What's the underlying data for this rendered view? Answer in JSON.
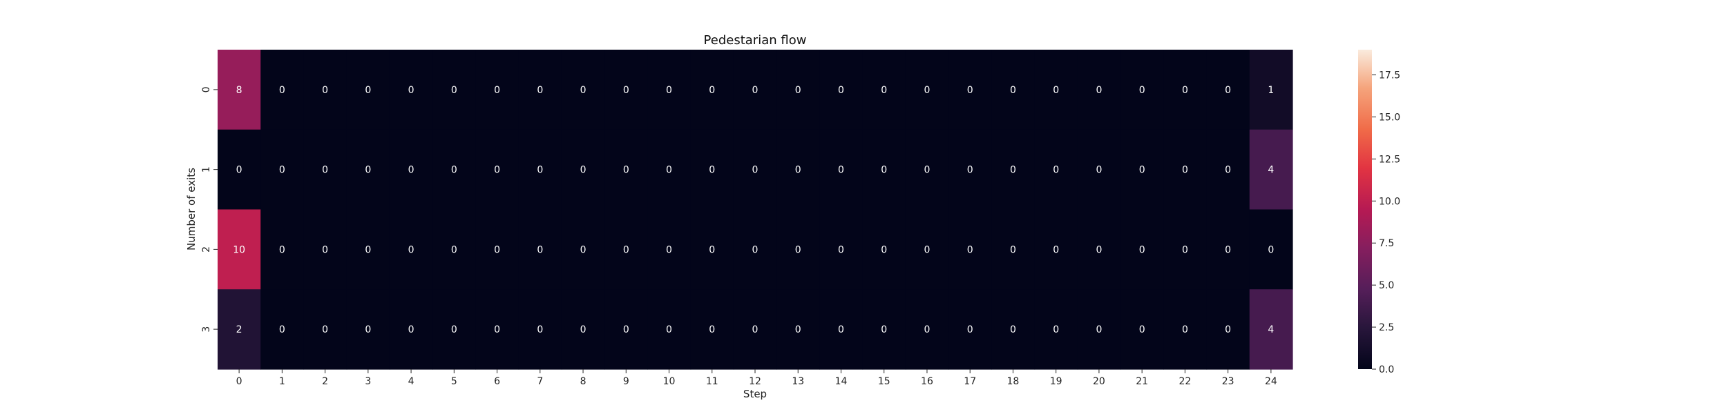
{
  "chart_data": {
    "type": "heatmap",
    "title": "Pedestarian flow",
    "xlabel": "Step",
    "ylabel": "Number of exits",
    "x_categories": [
      "0",
      "1",
      "2",
      "3",
      "4",
      "5",
      "6",
      "7",
      "8",
      "9",
      "10",
      "11",
      "12",
      "13",
      "14",
      "15",
      "16",
      "17",
      "18",
      "19",
      "20",
      "21",
      "22",
      "23",
      "24"
    ],
    "y_categories": [
      "0",
      "1",
      "2",
      "3"
    ],
    "values": [
      [
        8,
        0,
        0,
        0,
        0,
        0,
        0,
        0,
        0,
        0,
        0,
        0,
        0,
        0,
        0,
        0,
        0,
        0,
        0,
        0,
        0,
        0,
        0,
        0,
        1
      ],
      [
        0,
        0,
        0,
        0,
        0,
        0,
        0,
        0,
        0,
        0,
        0,
        0,
        0,
        0,
        0,
        0,
        0,
        0,
        0,
        0,
        0,
        0,
        0,
        0,
        4
      ],
      [
        10,
        0,
        0,
        0,
        0,
        0,
        0,
        0,
        0,
        0,
        0,
        0,
        0,
        0,
        0,
        0,
        0,
        0,
        0,
        0,
        0,
        0,
        0,
        0,
        0
      ],
      [
        2,
        0,
        0,
        0,
        0,
        0,
        0,
        0,
        0,
        0,
        0,
        0,
        0,
        0,
        0,
        0,
        0,
        0,
        0,
        0,
        0,
        0,
        0,
        0,
        4
      ]
    ],
    "colorbar": {
      "vmin": 0,
      "vmax": 19,
      "ticks": [
        0.0,
        2.5,
        5.0,
        7.5,
        10.0,
        12.5,
        15.0,
        17.5
      ],
      "tick_labels": [
        "0.0",
        "2.5",
        "5.0",
        "7.5",
        "10.0",
        "12.5",
        "15.0",
        "17.5"
      ],
      "colormap": "rocket"
    },
    "annotated": true,
    "grid": false
  }
}
